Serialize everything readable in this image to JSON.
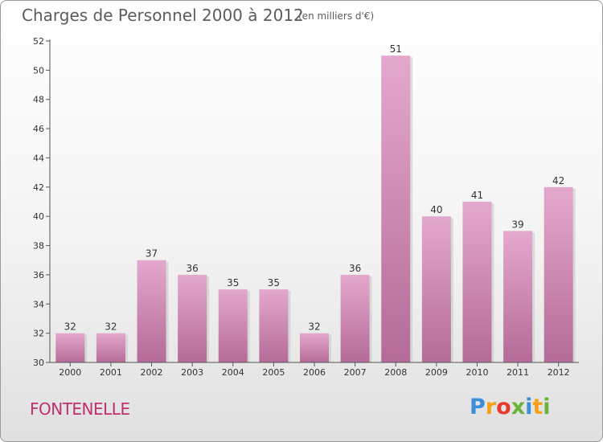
{
  "chart_data": {
    "type": "bar",
    "title": "Charges de Personnel 2000 à 2012",
    "subtitle": "(en milliers d'€)",
    "categories": [
      "2000",
      "2001",
      "2002",
      "2003",
      "2004",
      "2005",
      "2006",
      "2007",
      "2008",
      "2009",
      "2010",
      "2011",
      "2012"
    ],
    "values": [
      32,
      32,
      37,
      36,
      35,
      35,
      32,
      36,
      51,
      40,
      41,
      39,
      42
    ],
    "ylim": [
      30,
      52
    ],
    "yticks": [
      30,
      32,
      34,
      36,
      38,
      40,
      42,
      44,
      46,
      48,
      50,
      52
    ],
    "xlabel": "",
    "ylabel": "",
    "grid": false,
    "bar_color": "#d98cb9"
  },
  "place_name": "FONTENELLE",
  "logo": {
    "letters": [
      "P",
      "r",
      "o",
      "x",
      "i",
      "t",
      "i"
    ]
  }
}
